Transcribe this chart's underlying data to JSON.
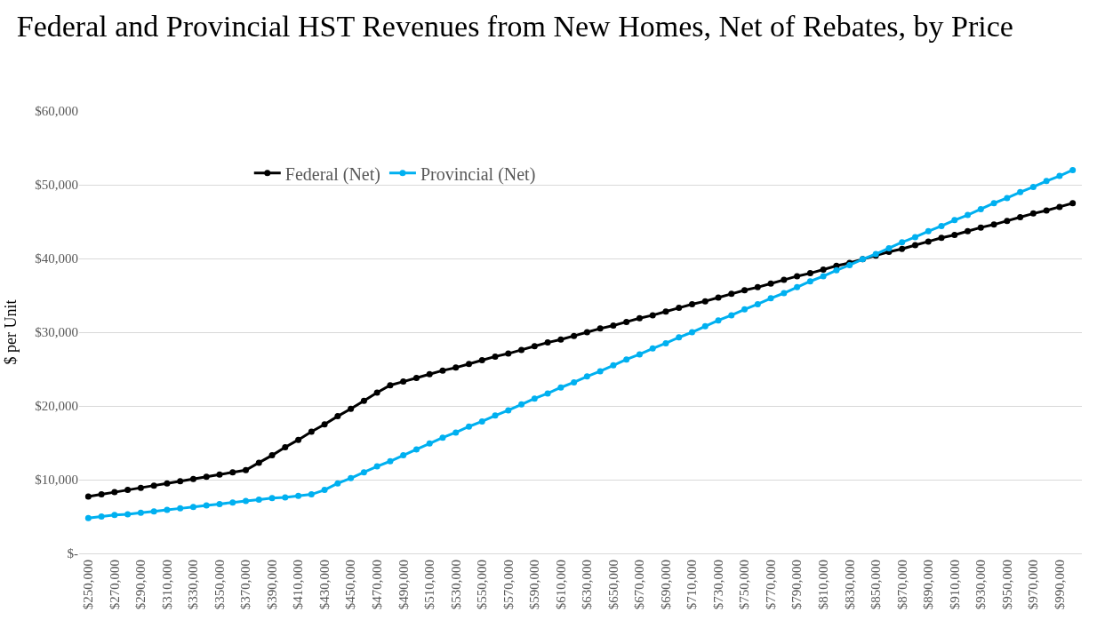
{
  "chart_data": {
    "type": "line",
    "title": "Federal and Provincial HST Revenues from New Homes, Net of Rebates, by Price",
    "ylabel": "$ per Unit",
    "categories": [
      "$250,000",
      null,
      "$270,000",
      null,
      "$290,000",
      null,
      "$310,000",
      null,
      "$330,000",
      null,
      "$350,000",
      null,
      "$370,000",
      null,
      "$390,000",
      null,
      "$410,000",
      null,
      "$430,000",
      null,
      "$450,000",
      null,
      "$470,000",
      null,
      "$490,000",
      null,
      "$510,000",
      null,
      "$530,000",
      null,
      "$550,000",
      null,
      "$570,000",
      null,
      "$590,000",
      null,
      "$610,000",
      null,
      "$630,000",
      null,
      "$650,000",
      null,
      "$670,000",
      null,
      "$690,000",
      null,
      "$710,000",
      null,
      "$730,000",
      null,
      "$750,000",
      null,
      "$770,000",
      null,
      "$790,000",
      null,
      "$810,000",
      null,
      "$830,000",
      null,
      "$850,000",
      null,
      "$870,000",
      null,
      "$890,000",
      null,
      "$910,000",
      null,
      "$930,000",
      null,
      "$950,000",
      null,
      "$970,000",
      null,
      "$990,000",
      null
    ],
    "series": [
      {
        "name": "Federal (Net)",
        "color": "#000000",
        "values": [
          7700,
          8000,
          8300,
          8600,
          8900,
          9200,
          9500,
          9800,
          10100,
          10400,
          10700,
          11000,
          11300,
          12300,
          13300,
          14400,
          15400,
          16500,
          17500,
          18600,
          19600,
          20700,
          21800,
          22800,
          23300,
          23800,
          24300,
          24800,
          25200,
          25700,
          26200,
          26700,
          27100,
          27600,
          28100,
          28600,
          29000,
          29500,
          30000,
          30500,
          30900,
          31400,
          31900,
          32300,
          32800,
          33300,
          33800,
          34200,
          34700,
          35200,
          35700,
          36100,
          36600,
          37100,
          37600,
          38000,
          38500,
          39000,
          39400,
          39900,
          40400,
          40900,
          41300,
          41800,
          42300,
          42800,
          43200,
          43700,
          44200,
          44600,
          45100,
          45600,
          46100,
          46500,
          47000,
          47500
        ]
      },
      {
        "name": "Provincial (Net)",
        "color": "#00b0f0",
        "values": [
          4800,
          5000,
          5200,
          5300,
          5500,
          5700,
          5900,
          6100,
          6300,
          6500,
          6700,
          6900,
          7100,
          7300,
          7500,
          7600,
          7800,
          8000,
          8600,
          9500,
          10200,
          11000,
          11800,
          12500,
          13300,
          14100,
          14900,
          15700,
          16400,
          17200,
          17900,
          18700,
          19400,
          20200,
          21000,
          21700,
          22500,
          23200,
          24000,
          24700,
          25500,
          26300,
          27000,
          27800,
          28500,
          29300,
          30000,
          30800,
          31600,
          32300,
          33100,
          33800,
          34600,
          35300,
          36100,
          36900,
          37600,
          38400,
          39100,
          39900,
          40600,
          41400,
          42200,
          42900,
          43700,
          44400,
          45200,
          45900,
          46700,
          47500,
          48200,
          49000,
          49700,
          50500,
          51200,
          52000
        ]
      }
    ],
    "ylim": [
      0,
      60000
    ],
    "yticks": [
      {
        "value": 0,
        "label": "$-"
      },
      {
        "value": 10000,
        "label": "$10,000"
      },
      {
        "value": 20000,
        "label": "$20,000"
      },
      {
        "value": 30000,
        "label": "$30,000"
      },
      {
        "value": 40000,
        "label": "$40,000"
      },
      {
        "value": 50000,
        "label": "$50,000"
      },
      {
        "value": 60000,
        "label": "$60,000"
      }
    ],
    "grid": "y",
    "legend": "top left",
    "marker": "circle",
    "line_style": "solid"
  }
}
